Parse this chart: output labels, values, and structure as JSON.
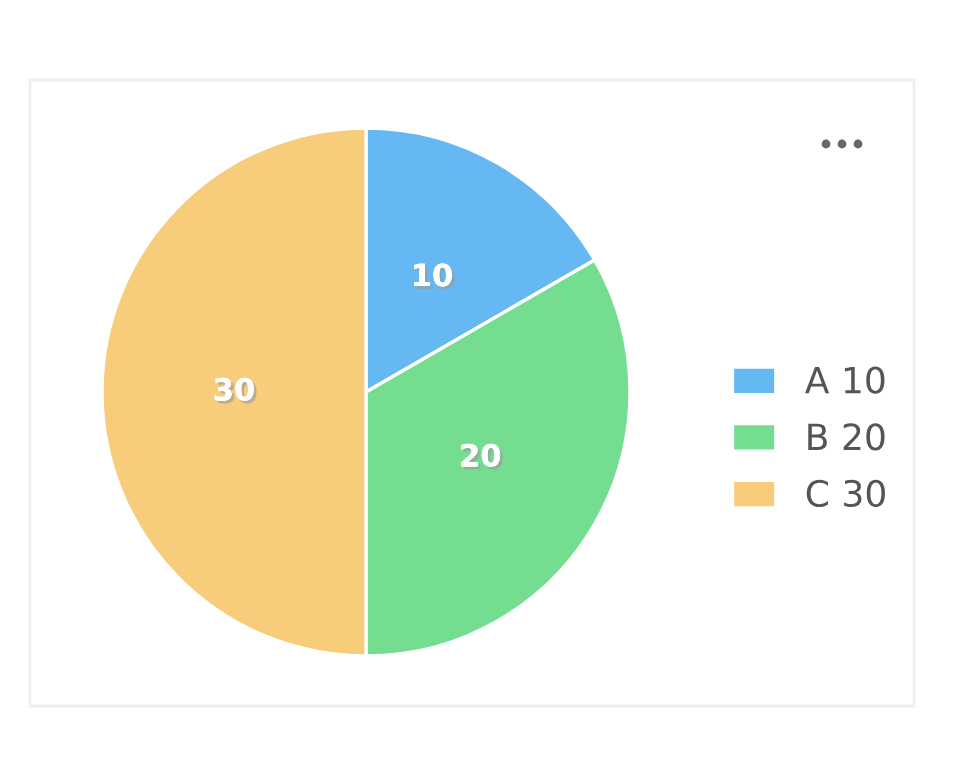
{
  "chart_data": {
    "type": "pie",
    "categories": [
      "A 10",
      "B 20",
      "C 30"
    ],
    "values": [
      10,
      20,
      30
    ],
    "colors": [
      "#66b8f2",
      "#74dd90",
      "#f7cd7c"
    ],
    "data_labels": true,
    "legend": "right"
  }
}
